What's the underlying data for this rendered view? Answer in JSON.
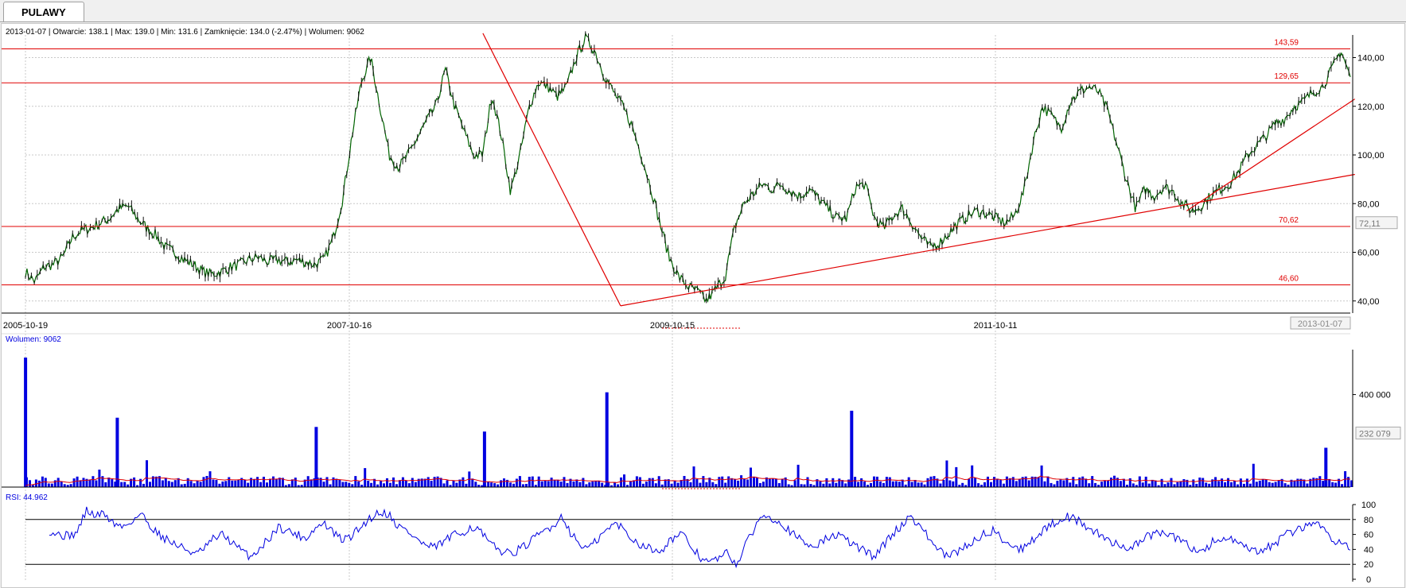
{
  "tab": {
    "label": "PULAWY"
  },
  "info": {
    "price": "2013-01-07 | Otwarcie: 138.1 | Max: 139.0 | Min: 131.6 | Zamknięcie: 134.0 (-2.47%)  | Wolumen: 9062",
    "volume": "Wolumen: 9062",
    "rsi": "RSI: 44.962"
  },
  "colors": {
    "price": "#006400",
    "lines": "#e00000",
    "volume": "#0000e0",
    "rsi": "#0000e0",
    "grid": "#c8c8c8"
  },
  "chart_data": [
    {
      "type": "line",
      "title": "",
      "x_labels": [
        "2005-10-19",
        "2007-10-16",
        "2009-10-15",
        "2011-10-11"
      ],
      "current_date": "2013-01-07",
      "current_value_label": "72,11",
      "ylim": [
        36,
        148
      ],
      "y_ticks": [
        40,
        60,
        80,
        100,
        120,
        140
      ],
      "y_tick_labels": [
        "40,00",
        "60,00",
        "80,00",
        "100,00",
        "120,00",
        "140,00"
      ],
      "series": [
        {
          "values": [
            52,
            48,
            54,
            55,
            58,
            66,
            69,
            70,
            72,
            74,
            78,
            79,
            74,
            70,
            67,
            62,
            60,
            57,
            55,
            52,
            51,
            52,
            54,
            55,
            57,
            58,
            56,
            57,
            56,
            57,
            56,
            55,
            57,
            66,
            82,
            108,
            130,
            140,
            120,
            100,
            95,
            100,
            107,
            114,
            120,
            135,
            120,
            110,
            100,
            100,
            125,
            108,
            85,
            100,
            120,
            130,
            128,
            124,
            128,
            140,
            148,
            143,
            133,
            126,
            120,
            112,
            100,
            87,
            72,
            58,
            50,
            46,
            44,
            40,
            45,
            50,
            70,
            80,
            84,
            88,
            86,
            88,
            85,
            83,
            86,
            82,
            78,
            74,
            74,
            87,
            88,
            74,
            70,
            75,
            78,
            72,
            66,
            62,
            64,
            68,
            72,
            75,
            77,
            76,
            74,
            72,
            75,
            85,
            105,
            120,
            116,
            111,
            122,
            126,
            128,
            126,
            118,
            104,
            90,
            78,
            86,
            83,
            87,
            85,
            80,
            77,
            79,
            83,
            86,
            88,
            93,
            100,
            104,
            108,
            113,
            115,
            120,
            122,
            126,
            128,
            135,
            143,
            132
          ]
        }
      ],
      "horizontal_levels": [
        {
          "value": 143.59,
          "label": "143,59"
        },
        {
          "value": 129.65,
          "label": "129,65"
        },
        {
          "value": 70.62,
          "label": "70,62"
        },
        {
          "value": 46.6,
          "label": "46,60"
        }
      ],
      "trend_lines": [
        {
          "from": [
            "2008-04",
            150
          ],
          "to": [
            "2009-01",
            38
          ]
        },
        {
          "from": [
            "2009-01",
            38
          ],
          "to": [
            "2013-01",
            92
          ]
        },
        {
          "from": [
            "2012-02",
            77
          ],
          "to": [
            "2013-01",
            123
          ]
        }
      ]
    },
    {
      "type": "bar",
      "title": "",
      "current_value_label": "232 079",
      "y_ticks": [
        400000
      ],
      "y_tick_labels": [
        "400 000"
      ],
      "ylim": [
        0,
        560000
      ],
      "peaks": [
        {
          "date": "2005-10",
          "value": 560000
        },
        {
          "date": "2006-04",
          "value": 300000
        },
        {
          "date": "2007-05",
          "value": 260000
        },
        {
          "date": "2008-04",
          "value": 240000
        },
        {
          "date": "2008-12",
          "value": 410000
        },
        {
          "date": "2010-04",
          "value": 330000
        },
        {
          "date": "2012-11",
          "value": 170000
        }
      ]
    },
    {
      "type": "line",
      "title": "",
      "ylim": [
        0,
        100
      ],
      "y_ticks": [
        0,
        20,
        40,
        60,
        80,
        100
      ],
      "y_tick_labels": [
        "0",
        "20",
        "40",
        "60",
        "80",
        "100"
      ],
      "levels": [
        20,
        80
      ],
      "series": [
        {
          "values": [
            65,
            60,
            58,
            62,
            92,
            85,
            88,
            75,
            70,
            78,
            88,
            72,
            60,
            52,
            45,
            40,
            33,
            42,
            55,
            60,
            48,
            38,
            30,
            42,
            55,
            70,
            65,
            60,
            55,
            68,
            75,
            62,
            52,
            58,
            70,
            82,
            90,
            88,
            72,
            65,
            55,
            45,
            42,
            50,
            58,
            62,
            70,
            65,
            48,
            40,
            35,
            38,
            45,
            55,
            65,
            72,
            85,
            60,
            45,
            42,
            55,
            68,
            75,
            62,
            50,
            45,
            38,
            42,
            55,
            60,
            45,
            30,
            22,
            28,
            35,
            20,
            45,
            70,
            88,
            82,
            75,
            62,
            52,
            45,
            48,
            55,
            60,
            52,
            45,
            38,
            30,
            45,
            60,
            72,
            85,
            72,
            55,
            40,
            30,
            35,
            45,
            52,
            60,
            65,
            55,
            45,
            40,
            50,
            60,
            70,
            78,
            85,
            80,
            72,
            65,
            55,
            50,
            45,
            42,
            50,
            58,
            62,
            60,
            55,
            48,
            40,
            38,
            50,
            55,
            52,
            45,
            40,
            35,
            42,
            50,
            60,
            65,
            70,
            78,
            68,
            55,
            48,
            45
          ]
        }
      ]
    }
  ]
}
